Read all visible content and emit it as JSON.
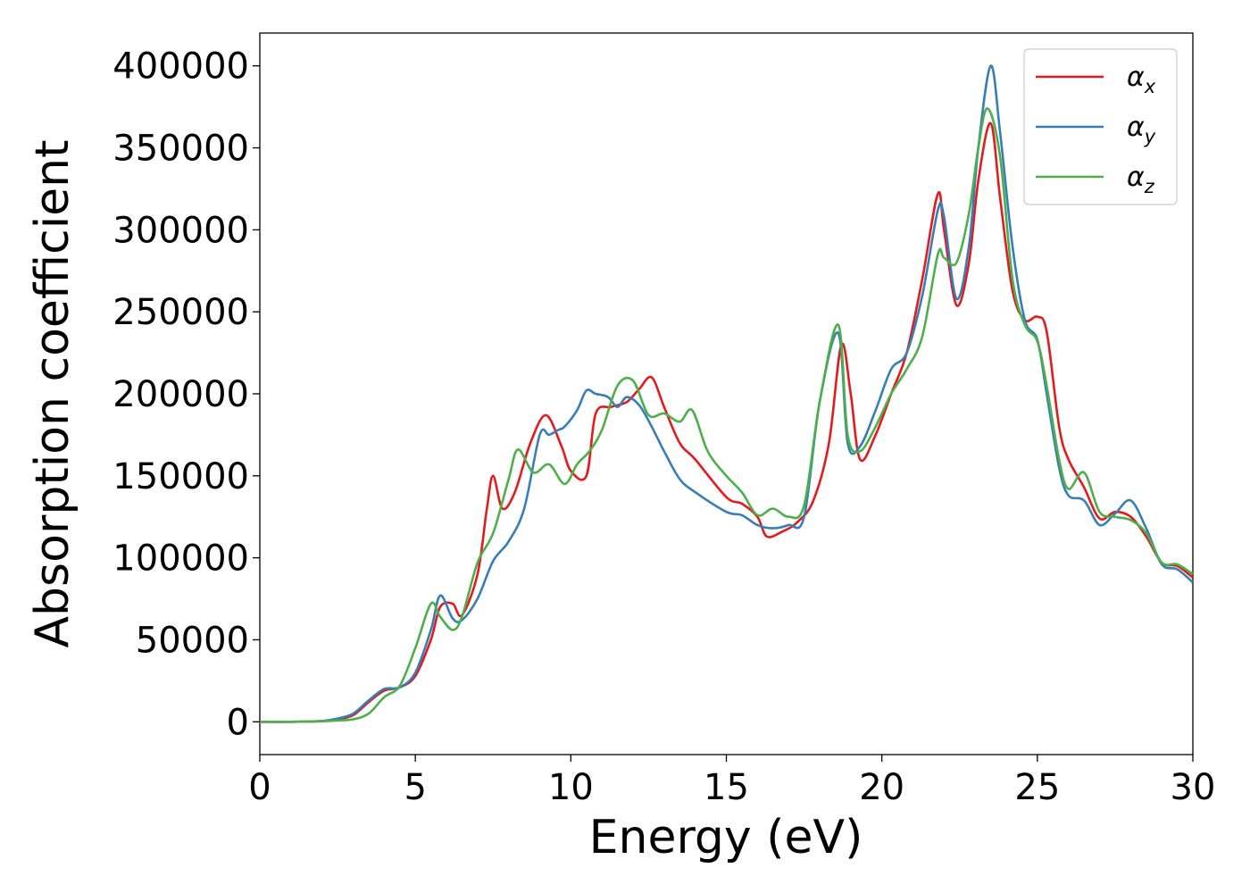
{
  "chart_data": {
    "type": "line",
    "title": "",
    "xlabel": "Energy (eV)",
    "ylabel": "Absorption coefficient",
    "xlim": [
      0,
      30
    ],
    "ylim": [
      -20000,
      420000
    ],
    "xticks": [
      0,
      5,
      10,
      15,
      20,
      25,
      30
    ],
    "yticks": [
      0,
      50000,
      100000,
      150000,
      200000,
      250000,
      300000,
      350000,
      400000
    ],
    "grid": false,
    "legend_position": "top-right",
    "series": [
      {
        "name": "α_x",
        "label_main": "α",
        "label_sub": "x",
        "color": "#e41a1c",
        "x": [
          0,
          1,
          2,
          2.5,
          3,
          3.5,
          4,
          4.5,
          5,
          5.5,
          5.8,
          6.2,
          6.5,
          7,
          7.3,
          7.5,
          7.8,
          8.2,
          8.7,
          9.2,
          9.7,
          10,
          10.5,
          10.8,
          11.3,
          11.8,
          12.2,
          12.6,
          13,
          13.5,
          14,
          15,
          15.5,
          16,
          16.3,
          16.8,
          17.3,
          17.8,
          18.3,
          18.7,
          19,
          19.3,
          19.8,
          20.3,
          20.8,
          21.3,
          21.8,
          22,
          22.4,
          22.8,
          23.1,
          23.5,
          23.8,
          24.2,
          24.6,
          25,
          25.3,
          25.7,
          26,
          26.5,
          27,
          27.5,
          28,
          28.5,
          29,
          29.5,
          30
        ],
        "y": [
          0,
          0,
          500,
          1500,
          4000,
          12000,
          19000,
          21000,
          28000,
          50000,
          70000,
          72000,
          65000,
          90000,
          130000,
          150000,
          130000,
          140000,
          170000,
          187000,
          168000,
          153000,
          150000,
          188000,
          192000,
          195000,
          203000,
          210000,
          192000,
          170000,
          160000,
          137000,
          133000,
          125000,
          113000,
          116000,
          122000,
          135000,
          170000,
          230000,
          200000,
          160000,
          175000,
          200000,
          225000,
          270000,
          322000,
          300000,
          254000,
          280000,
          330000,
          365000,
          320000,
          263000,
          245000,
          247000,
          238000,
          180000,
          160000,
          143000,
          124000,
          128000,
          125000,
          113000,
          97000,
          95000,
          88000
        ]
      },
      {
        "name": "α_y",
        "label_main": "α",
        "label_sub": "y",
        "color": "#377eb8",
        "x": [
          0,
          1,
          2,
          2.5,
          3,
          3.5,
          4,
          4.5,
          5,
          5.5,
          5.8,
          6.2,
          6.5,
          7,
          7.5,
          8,
          8.5,
          9,
          9.3,
          9.6,
          9.8,
          10.2,
          10.5,
          10.8,
          11.2,
          11.5,
          11.8,
          12.2,
          12.6,
          13,
          13.5,
          14,
          15,
          15.5,
          16,
          16.5,
          17,
          17.5,
          18,
          18.6,
          18.9,
          19.3,
          19.8,
          20.3,
          20.8,
          21.3,
          21.8,
          22,
          22.4,
          22.8,
          23.1,
          23.5,
          23.8,
          24.2,
          24.6,
          25,
          25.3,
          25.7,
          26,
          26.5,
          27,
          27.5,
          28,
          28.5,
          29,
          29.5,
          30
        ],
        "y": [
          0,
          0,
          500,
          2000,
          5000,
          13000,
          20000,
          21000,
          30000,
          56000,
          77000,
          63000,
          62000,
          75000,
          98000,
          110000,
          130000,
          175000,
          175000,
          178000,
          180000,
          190000,
          202000,
          200000,
          198000,
          192000,
          198000,
          193000,
          180000,
          165000,
          148000,
          140000,
          128000,
          126000,
          120000,
          118000,
          120000,
          125000,
          195000,
          237000,
          170000,
          168000,
          190000,
          215000,
          225000,
          260000,
          312000,
          308000,
          258000,
          290000,
          350000,
          400000,
          360000,
          290000,
          245000,
          233000,
          200000,
          155000,
          138000,
          135000,
          120000,
          127000,
          135000,
          118000,
          96000,
          93000,
          85000
        ]
      },
      {
        "name": "α_z",
        "label_main": "α",
        "label_sub": "z",
        "color": "#4daf4a",
        "x": [
          0,
          1,
          2,
          2.5,
          3,
          3.5,
          4,
          4.5,
          5,
          5.5,
          5.8,
          6.2,
          6.5,
          7,
          7.5,
          8,
          8.3,
          8.8,
          9.3,
          9.8,
          10.2,
          10.6,
          11,
          11.5,
          12,
          12.5,
          13,
          13.5,
          13.9,
          14.4,
          15,
          15.5,
          16,
          16.5,
          17,
          17.5,
          18,
          18.6,
          18.9,
          19.3,
          19.8,
          20.3,
          20.8,
          21.3,
          21.8,
          22,
          22.4,
          22.8,
          23.1,
          23.4,
          23.8,
          24.2,
          24.6,
          25,
          25.3,
          25.7,
          26,
          26.5,
          27,
          27.5,
          28,
          28.5,
          29,
          29.5,
          30
        ],
        "y": [
          0,
          0,
          300,
          800,
          1500,
          5000,
          15000,
          22000,
          45000,
          72000,
          64000,
          56000,
          64000,
          97000,
          115000,
          148000,
          166000,
          152000,
          157000,
          145000,
          157000,
          165000,
          178000,
          205000,
          208000,
          187000,
          188000,
          183000,
          190000,
          165000,
          150000,
          140000,
          126000,
          130000,
          125000,
          132000,
          195000,
          242000,
          175000,
          165000,
          180000,
          200000,
          215000,
          235000,
          285000,
          283000,
          280000,
          310000,
          350000,
          374000,
          345000,
          270000,
          242000,
          232000,
          205000,
          160000,
          142000,
          152000,
          128000,
          125000,
          123000,
          115000,
          97000,
          96000,
          90000
        ]
      }
    ]
  }
}
